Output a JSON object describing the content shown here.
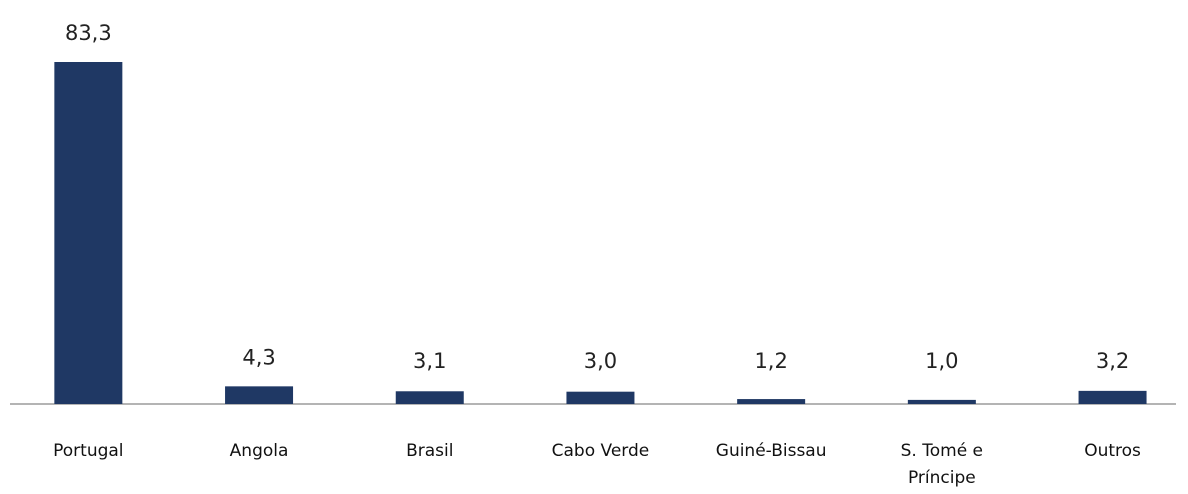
{
  "chart_data": {
    "type": "bar",
    "categories": [
      "Portugal",
      "Angola",
      "Brasil",
      "Cabo Verde",
      "Guiné-Bissau",
      "S. Tomé e Príncipe",
      "Outros"
    ],
    "values": [
      83.3,
      4.3,
      3.1,
      3.0,
      1.2,
      1.0,
      3.2
    ],
    "value_labels": [
      "83,3",
      "4,3",
      "3,1",
      "3,0",
      "1,2",
      "1,0",
      "3,2"
    ],
    "color": "#1f3864"
  }
}
